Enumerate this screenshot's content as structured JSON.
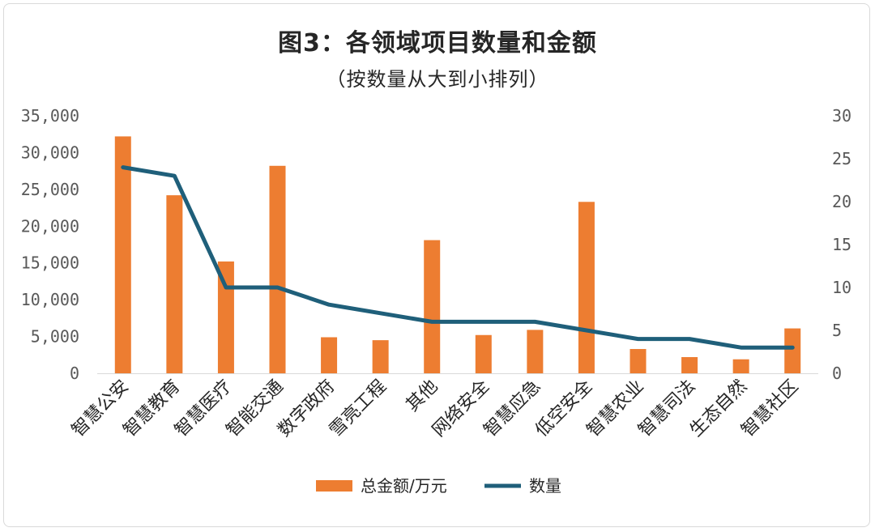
{
  "title": "图3：各领域项目数量和金额",
  "subtitle": "（按数量从大到小排列）",
  "colors": {
    "bar": "#ED7D31",
    "line": "#1F5F7A",
    "axis": "#d9d9d9",
    "tick": "#595959"
  },
  "chart_data": {
    "type": "bar",
    "categories": [
      "智慧公安",
      "智慧教育",
      "智慧医疗",
      "智能交通",
      "数字政府",
      "雪亮工程",
      "其他",
      "网络安全",
      "智慧应急",
      "低空安全",
      "智慧农业",
      "智慧司法",
      "生态自然",
      "智慧社区"
    ],
    "series": [
      {
        "name": "总金额/万元",
        "type": "bar",
        "axis": "left",
        "values": [
          32200,
          24200,
          15200,
          28200,
          4900,
          4500,
          18100,
          5200,
          5900,
          23300,
          3300,
          2200,
          1900,
          6100
        ]
      },
      {
        "name": "数量",
        "type": "line",
        "axis": "right",
        "values": [
          24,
          23,
          10,
          10,
          8,
          7,
          6,
          6,
          6,
          5,
          4,
          4,
          3,
          3
        ]
      }
    ],
    "y_left": {
      "min": 0,
      "max": 35000,
      "ticks": [
        "0",
        "5,000",
        "10,000",
        "15,000",
        "20,000",
        "25,000",
        "30,000",
        "35,000"
      ]
    },
    "y_right": {
      "min": 0,
      "max": 30,
      "ticks": [
        "0",
        "5",
        "10",
        "15",
        "20",
        "25",
        "30"
      ]
    },
    "grid": false,
    "legend_position": "bottom"
  }
}
